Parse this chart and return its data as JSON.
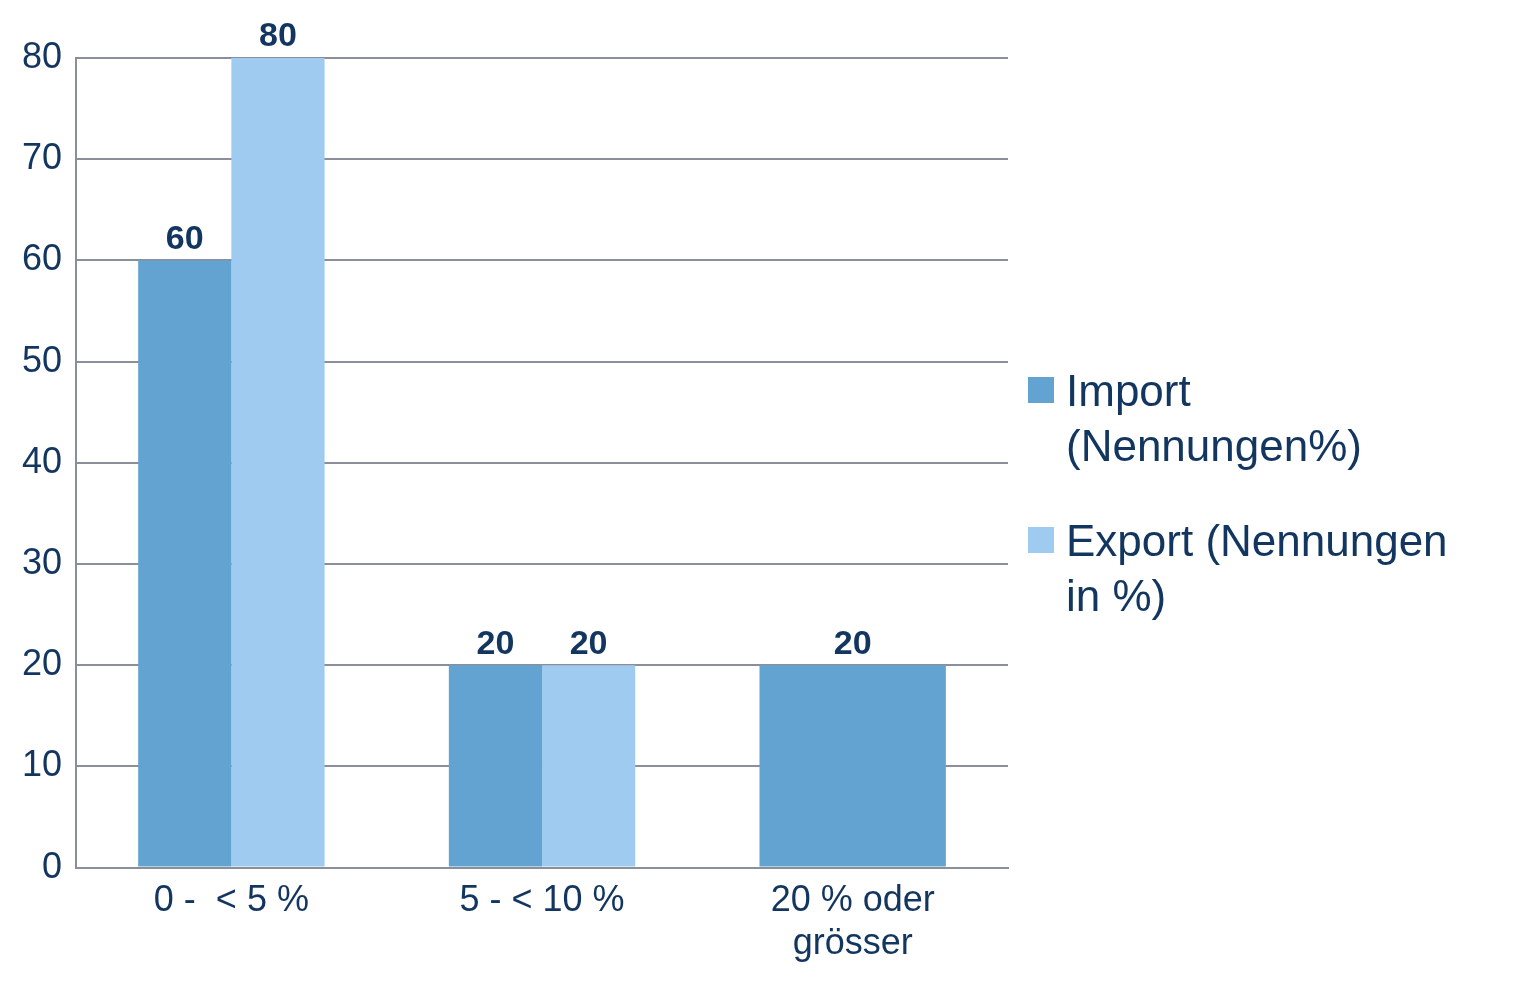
{
  "chart_data": {
    "type": "bar",
    "categories": [
      "0 -  < 5 %",
      "5 - < 10 %",
      "20 % oder grösser"
    ],
    "series": [
      {
        "name": "Import (Nennungen%)",
        "color": "#63a3d1",
        "values": [
          60,
          20,
          20
        ]
      },
      {
        "name": "Export (Nennungen in %)",
        "color": "#9fcbf0",
        "values": [
          80,
          20,
          null
        ]
      }
    ],
    "ylim": [
      0,
      80
    ],
    "yticks": [
      0,
      10,
      20,
      30,
      40,
      50,
      60,
      70,
      80
    ],
    "grid": "y",
    "legend": "right",
    "data_labels": true
  }
}
